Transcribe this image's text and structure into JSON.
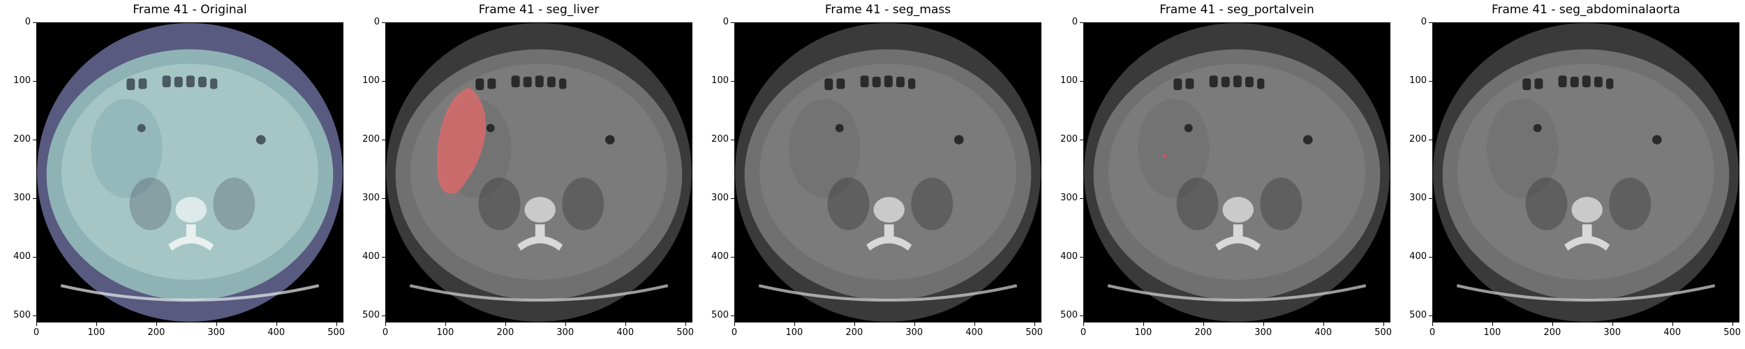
{
  "figure": {
    "panels": [
      {
        "title": "Frame 41 - Original",
        "overlay": "none",
        "tint": "#7fa3a8",
        "background_ring": "#585a80"
      },
      {
        "title": "Frame 41 - seg_liver",
        "overlay": "liver",
        "tint": "#6c6c6c",
        "background_ring": "#3a3a3a",
        "overlay_color": "#d46a6a"
      },
      {
        "title": "Frame 41 - seg_mass",
        "overlay": "none",
        "tint": "#6c6c6c",
        "background_ring": "#3a3a3a"
      },
      {
        "title": "Frame 41 - seg_portalvein",
        "overlay": "dot",
        "tint": "#6c6c6c",
        "background_ring": "#3a3a3a",
        "overlay_color": "#e05050"
      },
      {
        "title": "Frame 41 - seg_abdominalaorta",
        "overlay": "none",
        "tint": "#6c6c6c",
        "background_ring": "#3a3a3a"
      }
    ],
    "y_ticks": [
      "0",
      "100",
      "200",
      "300",
      "400",
      "500"
    ],
    "x_ticks": [
      "0",
      "100",
      "200",
      "300",
      "400",
      "500"
    ],
    "axis_range": [
      0,
      512
    ]
  }
}
